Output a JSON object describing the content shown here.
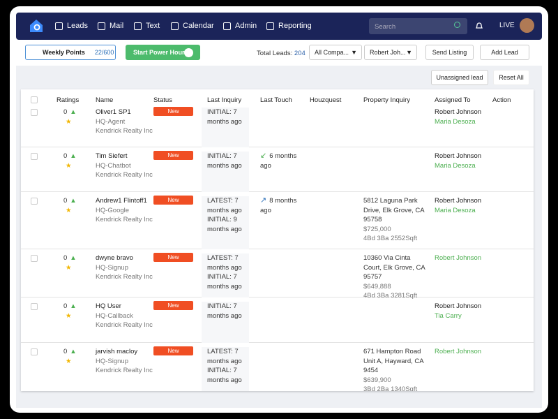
{
  "nav": {
    "items": [
      "Leads",
      "Mail",
      "Text",
      "Calendar",
      "Admin",
      "Reporting"
    ],
    "search": "Search",
    "live": "LIVE"
  },
  "toolbar": {
    "weekly_points": "Weekly Points",
    "weekly_points_value": "22/600",
    "power_hour": "Start Power Hour",
    "total_leads_label": "Total Leads:",
    "total_leads": 204,
    "company": "All Compa...",
    "agent": "Robert Joh...",
    "send_listing": "Send Listing",
    "add_lead": "Add Lead"
  },
  "actions": {
    "unassigned": "Unassigned lead",
    "reset": "Reset All"
  },
  "table": {
    "columns": [
      "Ratings",
      "Name",
      "Status",
      "Last Inquiry",
      "Last Touch",
      "Houzquest",
      "Property Inquiry",
      "Assigned To",
      "Action"
    ],
    "rows": [
      {
        "rating": 0,
        "name": "Oliver1 SP1",
        "source": "HQ-Agent",
        "company": "Kendrick Realty Inc",
        "status": "New",
        "inquiry": [
          "INITIAL: 7 months ago"
        ],
        "assigned_to": "Robert Johnson",
        "assigned_team": "Maria Desoza"
      },
      {
        "rating": 0,
        "name": "Tim Siefert",
        "source": "HQ-Chatbot",
        "company": "Kendrick Realty Inc",
        "status": "New",
        "inquiry": [
          "INITIAL: 7 months ago"
        ],
        "touch": "6 months ago",
        "assigned_to": "Robert Johnson",
        "assigned_team": "Maria Desoza"
      },
      {
        "rating": 0,
        "name": "Andrew1 Flintoff1",
        "source": "HQ-Google",
        "company": "Kendrick Realty Inc",
        "status": "New",
        "inquiry": [
          "LATEST: 7 months ago",
          "INITIAL: 9 months ago"
        ],
        "touch": "8 months ago",
        "property": {
          "address": "5812 Laguna Park Drive, Elk Grove, CA 95758",
          "price": "$725,000",
          "details": "4Bd 3Ba 2552Sqft"
        },
        "assigned_to": "Robert Johnson",
        "assigned_team": "Maria Desoza"
      },
      {
        "rating": 0,
        "name": "dwyne bravo",
        "source": "HQ-Signup",
        "company": "Kendrick Realty Inc",
        "status": "New",
        "inquiry": [
          "LATEST: 7 months ago",
          "INITIAL: 7 months ago"
        ],
        "property": {
          "address": "10360 Via Cinta Court, Elk Grove, CA 95757",
          "price": "$649,888",
          "details": "4Bd 3Ba 3281Sqft"
        },
        "assigned_team": "Robert Johnson"
      },
      {
        "rating": 0,
        "name": "HQ User",
        "source": "HQ-Callback",
        "company": "Kendrick Realty Inc",
        "status": "New",
        "inquiry": [
          "INITIAL: 7 months ago"
        ],
        "assigned_to": "Robert Johnson",
        "assigned_team": "Tia Carry"
      },
      {
        "rating": 0,
        "name": "jarvish macloy",
        "source": "HQ-Signup",
        "company": "Kendrick Realty Inc",
        "status": "New",
        "inquiry": [
          "LATEST: 7 months ago",
          "INITIAL: 7 months ago"
        ],
        "property": {
          "address": "671 Hampton Road Unit A, Hayward, CA 9454",
          "price": "$639,900",
          "details": "3Bd 2Ba 1340Sqft"
        },
        "assigned_team": "Robert Johnson"
      }
    ]
  }
}
